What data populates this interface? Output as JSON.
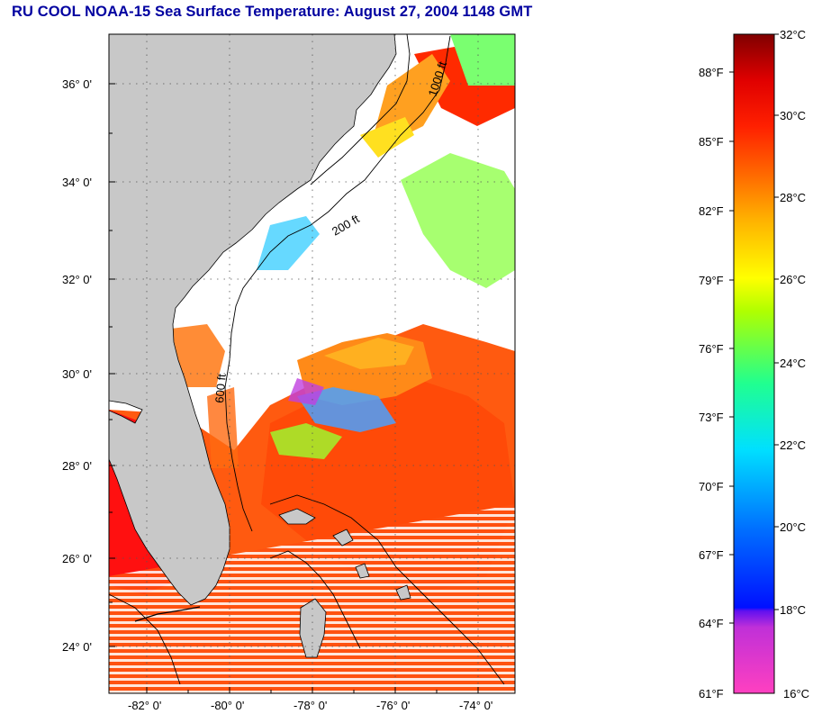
{
  "title": "RU COOL  NOAA-15  Sea Surface Temperature:  August 27, 2004 1148 GMT",
  "map": {
    "lat_labels": [
      "36° 0'",
      "34° 0'",
      "32° 0'",
      "30° 0'",
      "28° 0'",
      "26° 0'",
      "24° 0'"
    ],
    "lon_labels": [
      "-82° 0'",
      "-80° 0'",
      "-78° 0'",
      "-76° 0'",
      "-74° 0'"
    ],
    "land_color": "#c8c8c8",
    "cloud_color": "#ffffff",
    "isobath_labels": [
      "1000 ft",
      "200 ft",
      "600 ft"
    ]
  },
  "colorbar": {
    "fahrenheit_labels": [
      "88°F",
      "85°F",
      "82°F",
      "79°F",
      "76°F",
      "73°F",
      "70°F",
      "67°F",
      "64°F",
      "61°F"
    ],
    "celsius_labels": [
      "32°C",
      "30°C",
      "28°C",
      "26°C",
      "24°C",
      "22°C",
      "20°C",
      "18°C",
      "16°C"
    ],
    "colors": [
      "#ff40c0",
      "#a020e0",
      "#0010ff",
      "#0080ff",
      "#00e0ff",
      "#20ff80",
      "#c0ff00",
      "#ffff00",
      "#ffa000",
      "#ff4000",
      "#ff0000",
      "#900000"
    ]
  }
}
